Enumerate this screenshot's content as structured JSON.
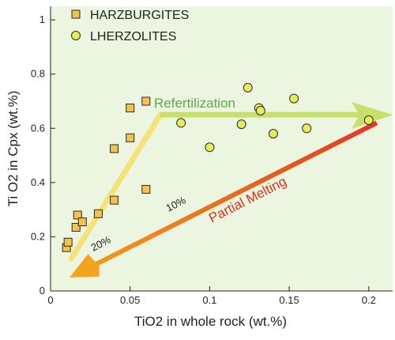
{
  "colors": {
    "plot_bg": "#ebf5df",
    "square_fill": "#f4c24d",
    "circle_fill": "#e5ee5a",
    "marker_stroke": "#2a2a2a",
    "refert_arrow": "#c8e06a",
    "refert_text": "#5fa84a",
    "melt_arrow_start": "#f5a21e",
    "melt_arrow_end": "#e03a22",
    "melt_text": "#d9321f",
    "yellow_line": "#f7e27a",
    "axis": "#222222"
  },
  "chart_data": {
    "type": "scatter",
    "xlabel": "TiO2 in whole rock (wt.%)",
    "ylabel": "Ti O2 in Cpx (wt.%)",
    "xlim": [
      0,
      0.215
    ],
    "ylim": [
      0,
      1.05
    ],
    "x_ticks": [
      {
        "v": 0,
        "label": "0"
      },
      {
        "v": 0.05,
        "label": "0.05"
      },
      {
        "v": 0.1,
        "label": "0.1"
      },
      {
        "v": 0.15,
        "label": "0.15"
      },
      {
        "v": 0.2,
        "label": "0.2"
      }
    ],
    "y_ticks": [
      {
        "v": 0,
        "label": "0"
      },
      {
        "v": 0.2,
        "label": "0.2"
      },
      {
        "v": 0.4,
        "label": "0.4"
      },
      {
        "v": 0.6,
        "label": "0.6"
      },
      {
        "v": 0.8,
        "label": "0.8"
      },
      {
        "v": 1.0,
        "label": "1"
      }
    ],
    "legend_position": "top-left",
    "series": [
      {
        "name": "HARZBURGITES",
        "marker": "square",
        "points": [
          {
            "x": 0.01,
            "y": 0.16
          },
          {
            "x": 0.011,
            "y": 0.18
          },
          {
            "x": 0.016,
            "y": 0.235
          },
          {
            "x": 0.017,
            "y": 0.28
          },
          {
            "x": 0.02,
            "y": 0.255
          },
          {
            "x": 0.03,
            "y": 0.285
          },
          {
            "x": 0.04,
            "y": 0.335
          },
          {
            "x": 0.04,
            "y": 0.525
          },
          {
            "x": 0.05,
            "y": 0.565
          },
          {
            "x": 0.05,
            "y": 0.675
          },
          {
            "x": 0.06,
            "y": 0.7
          },
          {
            "x": 0.06,
            "y": 0.375
          }
        ]
      },
      {
        "name": "LHERZOLITES",
        "marker": "circle",
        "points": [
          {
            "x": 0.082,
            "y": 0.62
          },
          {
            "x": 0.1,
            "y": 0.53
          },
          {
            "x": 0.12,
            "y": 0.615
          },
          {
            "x": 0.124,
            "y": 0.75
          },
          {
            "x": 0.131,
            "y": 0.675
          },
          {
            "x": 0.132,
            "y": 0.665
          },
          {
            "x": 0.14,
            "y": 0.58
          },
          {
            "x": 0.153,
            "y": 0.71
          },
          {
            "x": 0.161,
            "y": 0.6
          },
          {
            "x": 0.2,
            "y": 0.63
          }
        ]
      }
    ],
    "annotations": {
      "refertilization": "Refertilization",
      "partial_melting": "Partial Melting",
      "pct_10": "10%",
      "pct_20": "20%"
    }
  }
}
